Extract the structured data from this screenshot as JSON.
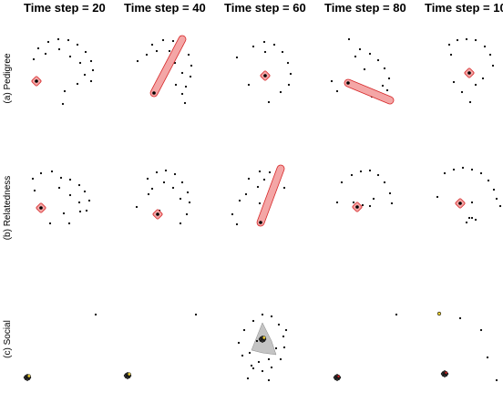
{
  "chart_data": {
    "type": "scatter",
    "column_titles": [
      "Time step = 20",
      "Time step = 40",
      "Time step = 60",
      "Time step = 80",
      "Time step = 100"
    ],
    "row_labels": [
      "(a) Pedigree",
      "(b) Relatedness",
      "(c) Social"
    ],
    "colors": {
      "highlight_fill": "#f4a6a6",
      "highlight_stroke": "#d62728",
      "social_hull": "#b0b0b0",
      "social_yellow": "#f2d33a",
      "point": "#000000"
    },
    "xlim": [
      0,
      1
    ],
    "ylim": [
      0,
      1
    ],
    "panels": [
      {
        "row": 0,
        "col": 0,
        "points": [
          [
            0.22,
            0.83
          ],
          [
            0.33,
            0.9
          ],
          [
            0.44,
            0.93
          ],
          [
            0.55,
            0.92
          ],
          [
            0.65,
            0.87
          ],
          [
            0.74,
            0.79
          ],
          [
            0.8,
            0.69
          ],
          [
            0.82,
            0.59
          ],
          [
            0.8,
            0.47
          ],
          [
            0.17,
            0.71
          ],
          [
            0.3,
            0.77
          ],
          [
            0.45,
            0.82
          ],
          [
            0.57,
            0.74
          ],
          [
            0.68,
            0.67
          ],
          [
            0.73,
            0.54
          ],
          [
            0.65,
            0.44
          ],
          [
            0.51,
            0.36
          ],
          [
            0.49,
            0.22
          ]
        ],
        "highlight": {
          "x1": 0.2,
          "y1": 0.47,
          "x2": 0.2,
          "y2": 0.47
        }
      },
      {
        "row": 0,
        "col": 1,
        "points": [
          [
            0.37,
            0.87
          ],
          [
            0.49,
            0.92
          ],
          [
            0.6,
            0.91
          ],
          [
            0.7,
            0.86
          ],
          [
            0.77,
            0.76
          ],
          [
            0.8,
            0.64
          ],
          [
            0.79,
            0.52
          ],
          [
            0.74,
            0.41
          ],
          [
            0.7,
            0.33
          ],
          [
            0.21,
            0.69
          ],
          [
            0.31,
            0.76
          ],
          [
            0.42,
            0.8
          ],
          [
            0.56,
            0.8
          ],
          [
            0.62,
            0.67
          ],
          [
            0.7,
            0.56
          ],
          [
            0.63,
            0.43
          ],
          [
            0.73,
            0.23
          ]
        ],
        "highlight": {
          "x1": 0.39,
          "y1": 0.34,
          "x2": 0.7,
          "y2": 0.93
        }
      },
      {
        "row": 0,
        "col": 2,
        "points": [
          [
            0.38,
            0.85
          ],
          [
            0.5,
            0.9
          ],
          [
            0.61,
            0.87
          ],
          [
            0.7,
            0.79
          ],
          [
            0.76,
            0.67
          ],
          [
            0.79,
            0.55
          ],
          [
            0.77,
            0.43
          ],
          [
            0.68,
            0.35
          ],
          [
            0.2,
            0.73
          ],
          [
            0.33,
            0.43
          ],
          [
            0.55,
            0.24
          ],
          [
            0.51,
            0.79
          ]
        ],
        "highlight": {
          "x1": 0.51,
          "y1": 0.53,
          "x2": 0.51,
          "y2": 0.53
        }
      },
      {
        "row": 0,
        "col": 3,
        "points": [
          [
            0.33,
            0.93
          ],
          [
            0.45,
            0.82
          ],
          [
            0.56,
            0.77
          ],
          [
            0.65,
            0.7
          ],
          [
            0.72,
            0.61
          ],
          [
            0.77,
            0.5
          ],
          [
            0.75,
            0.37
          ],
          [
            0.5,
            0.6
          ],
          [
            0.2,
            0.36
          ],
          [
            0.4,
            0.74
          ],
          [
            0.7,
            0.42
          ],
          [
            0.14,
            0.47
          ],
          [
            0.58,
            0.3
          ]
        ],
        "highlight": {
          "x1": 0.32,
          "y1": 0.45,
          "x2": 0.78,
          "y2": 0.26
        }
      },
      {
        "row": 0,
        "col": 4,
        "points": [
          [
            0.33,
            0.87
          ],
          [
            0.42,
            0.92
          ],
          [
            0.52,
            0.93
          ],
          [
            0.62,
            0.92
          ],
          [
            0.72,
            0.85
          ],
          [
            0.78,
            0.76
          ],
          [
            0.81,
            0.64
          ],
          [
            0.35,
            0.76
          ],
          [
            0.52,
            0.57
          ],
          [
            0.7,
            0.5
          ],
          [
            0.62,
            0.43
          ],
          [
            0.38,
            0.46
          ],
          [
            0.47,
            0.35
          ],
          [
            0.56,
            0.24
          ]
        ],
        "highlight": {
          "x1": 0.55,
          "y1": 0.56,
          "x2": 0.55,
          "y2": 0.56
        }
      },
      {
        "row": 1,
        "col": 0,
        "points": [
          [
            0.16,
            0.82
          ],
          [
            0.25,
            0.88
          ],
          [
            0.37,
            0.9
          ],
          [
            0.47,
            0.83
          ],
          [
            0.57,
            0.81
          ],
          [
            0.67,
            0.75
          ],
          [
            0.73,
            0.68
          ],
          [
            0.78,
            0.58
          ],
          [
            0.75,
            0.47
          ],
          [
            0.45,
            0.72
          ],
          [
            0.57,
            0.64
          ],
          [
            0.67,
            0.56
          ],
          [
            0.68,
            0.46
          ],
          [
            0.5,
            0.44
          ],
          [
            0.35,
            0.33
          ],
          [
            0.56,
            0.33
          ],
          [
            0.18,
            0.69
          ]
        ],
        "highlight": {
          "x1": 0.25,
          "y1": 0.5,
          "x2": 0.25,
          "y2": 0.5
        }
      },
      {
        "row": 1,
        "col": 1,
        "points": [
          [
            0.32,
            0.82
          ],
          [
            0.42,
            0.89
          ],
          [
            0.52,
            0.91
          ],
          [
            0.62,
            0.87
          ],
          [
            0.7,
            0.78
          ],
          [
            0.76,
            0.67
          ],
          [
            0.78,
            0.56
          ],
          [
            0.75,
            0.43
          ],
          [
            0.37,
            0.71
          ],
          [
            0.5,
            0.78
          ],
          [
            0.6,
            0.72
          ],
          [
            0.68,
            0.6
          ],
          [
            0.2,
            0.51
          ],
          [
            0.33,
            0.65
          ],
          [
            0.68,
            0.33
          ],
          [
            0.45,
            0.47
          ]
        ],
        "highlight": {
          "x1": 0.43,
          "y1": 0.43,
          "x2": 0.43,
          "y2": 0.43
        }
      },
      {
        "row": 1,
        "col": 2,
        "points": [
          [
            0.33,
            0.82
          ],
          [
            0.45,
            0.9
          ],
          [
            0.56,
            0.89
          ],
          [
            0.65,
            0.83
          ],
          [
            0.72,
            0.72
          ],
          [
            0.3,
            0.65
          ],
          [
            0.43,
            0.73
          ],
          [
            0.5,
            0.81
          ],
          [
            0.62,
            0.75
          ],
          [
            0.23,
            0.58
          ],
          [
            0.15,
            0.43
          ],
          [
            0.2,
            0.32
          ],
          [
            0.45,
            0.55
          ]
        ],
        "highlight": {
          "x1": 0.46,
          "y1": 0.34,
          "x2": 0.68,
          "y2": 0.93
        }
      },
      {
        "row": 1,
        "col": 3,
        "points": [
          [
            0.25,
            0.78
          ],
          [
            0.36,
            0.86
          ],
          [
            0.46,
            0.9
          ],
          [
            0.56,
            0.91
          ],
          [
            0.65,
            0.86
          ],
          [
            0.72,
            0.78
          ],
          [
            0.78,
            0.66
          ],
          [
            0.8,
            0.55
          ],
          [
            0.2,
            0.56
          ],
          [
            0.38,
            0.56
          ],
          [
            0.48,
            0.53
          ],
          [
            0.56,
            0.52
          ],
          [
            0.6,
            0.6
          ]
        ],
        "highlight": {
          "x1": 0.42,
          "y1": 0.51,
          "x2": 0.42,
          "y2": 0.51
        }
      },
      {
        "row": 1,
        "col": 4,
        "points": [
          [
            0.28,
            0.88
          ],
          [
            0.38,
            0.92
          ],
          [
            0.48,
            0.94
          ],
          [
            0.58,
            0.92
          ],
          [
            0.68,
            0.88
          ],
          [
            0.76,
            0.8
          ],
          [
            0.82,
            0.7
          ],
          [
            0.85,
            0.6
          ],
          [
            0.89,
            0.52
          ],
          [
            0.2,
            0.62
          ],
          [
            0.58,
            0.56
          ],
          [
            0.58,
            0.39
          ],
          [
            0.62,
            0.37
          ],
          [
            0.52,
            0.34
          ],
          [
            0.55,
            0.39
          ]
        ],
        "highlight": {
          "x1": 0.45,
          "y1": 0.55,
          "x2": 0.45,
          "y2": 0.55
        }
      },
      {
        "row": 2,
        "col": 0,
        "points": [
          [
            0.85,
            0.77
          ]
        ],
        "cluster": {
          "x": 0.1,
          "y": 0.08,
          "yellow": true
        }
      },
      {
        "row": 2,
        "col": 1,
        "points": [
          [
            0.85,
            0.77
          ]
        ],
        "cluster": {
          "x": 0.1,
          "y": 0.1,
          "yellow": true
        }
      },
      {
        "row": 2,
        "col": 2,
        "points": [
          [
            0.38,
            0.7
          ],
          [
            0.48,
            0.77
          ],
          [
            0.58,
            0.75
          ],
          [
            0.66,
            0.66
          ],
          [
            0.71,
            0.53
          ],
          [
            0.72,
            0.41
          ],
          [
            0.68,
            0.28
          ],
          [
            0.58,
            0.19
          ],
          [
            0.48,
            0.15
          ],
          [
            0.36,
            0.21
          ],
          [
            0.26,
            0.32
          ],
          [
            0.22,
            0.46
          ],
          [
            0.28,
            0.6
          ],
          [
            0.34,
            0.35
          ],
          [
            0.44,
            0.25
          ],
          [
            0.55,
            0.28
          ],
          [
            0.63,
            0.4
          ],
          [
            0.42,
            0.48
          ],
          [
            0.74,
            0.6
          ],
          [
            0.5,
            0.5
          ],
          [
            0.38,
            0.18
          ],
          [
            0.55,
            0.05
          ],
          [
            0.32,
            0.07
          ]
        ],
        "hull": [
          [
            0.48,
            0.68
          ],
          [
            0.58,
            0.48
          ],
          [
            0.63,
            0.33
          ],
          [
            0.48,
            0.35
          ],
          [
            0.36,
            0.38
          ]
        ],
        "cluster": {
          "x": 0.48,
          "y": 0.5,
          "yellow": true
        }
      },
      {
        "row": 2,
        "col": 3,
        "points": [
          [
            0.85,
            0.77
          ]
        ],
        "cluster": {
          "x": 0.2,
          "y": 0.08,
          "yellow": false
        }
      },
      {
        "row": 2,
        "col": 4,
        "points": [
          [
            0.22,
            0.77
          ],
          [
            0.45,
            0.73
          ],
          [
            0.68,
            0.6
          ],
          [
            0.75,
            0.3
          ],
          [
            0.85,
            0.05
          ]
        ],
        "yellow_points": [
          [
            0.22,
            0.78
          ]
        ],
        "cluster": {
          "x": 0.28,
          "y": 0.12,
          "yellow": false
        }
      }
    ]
  }
}
